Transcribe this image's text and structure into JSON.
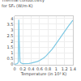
{
  "chart_data": {
    "type": "line",
    "title": "Thermal conductivity\nfor SF₆ (W/m·K)",
    "x_label": "Temperature (in 10³ K)",
    "x": [
      0.0,
      0.04,
      0.07,
      0.09,
      0.1,
      0.105,
      0.11,
      0.115,
      0.12,
      0.13,
      0.14,
      0.16,
      0.18,
      0.2,
      0.25,
      0.3,
      0.35,
      0.4,
      0.45,
      0.5,
      0.55,
      0.6,
      0.65,
      0.7,
      0.75,
      0.8,
      0.85,
      0.9,
      0.95,
      1.0,
      1.05,
      1.1,
      1.15,
      1.2,
      1.25,
      1.3,
      1.35,
      1.4
    ],
    "values": [
      0.0,
      0.02,
      0.05,
      0.2,
      3.9,
      3.5,
      2.2,
      1.2,
      0.55,
      0.25,
      0.15,
      0.08,
      0.06,
      0.05,
      0.04,
      0.05,
      0.07,
      0.1,
      0.14,
      0.18,
      0.24,
      0.32,
      0.42,
      0.55,
      0.7,
      0.88,
      1.08,
      1.3,
      1.55,
      1.82,
      2.1,
      2.38,
      2.65,
      2.92,
      3.15,
      3.38,
      3.6,
      3.85
    ],
    "color": "#7ec8e3",
    "xlim": [
      0,
      1.4
    ],
    "xticks": [
      0,
      0.2,
      0.4,
      0.6,
      0.8,
      1,
      1.2,
      1.4
    ],
    "ylim": [
      -0.05,
      4.2
    ],
    "yticks": [
      0,
      0.5,
      1,
      1.5,
      2,
      2.5,
      3,
      3.5,
      4
    ],
    "grid": true
  }
}
